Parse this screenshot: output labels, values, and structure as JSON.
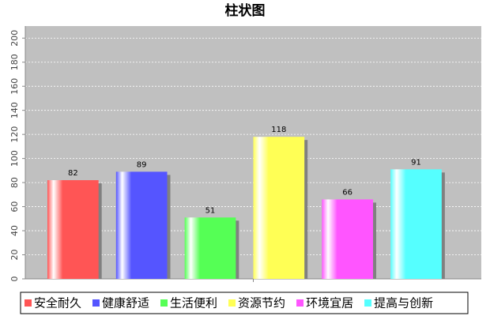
{
  "chart_data": {
    "type": "bar",
    "title": "柱状图",
    "categories": [
      null
    ],
    "series": [
      {
        "name": "安全耐久",
        "color": "#ff5555",
        "values": [
          82
        ]
      },
      {
        "name": "健康舒适",
        "color": "#5555ff",
        "values": [
          89
        ]
      },
      {
        "name": "生活便利",
        "color": "#55ff55",
        "values": [
          51
        ]
      },
      {
        "name": "资源节约",
        "color": "#ffff55",
        "values": [
          118
        ]
      },
      {
        "name": "环境宜居",
        "color": "#ff55ff",
        "values": [
          66
        ]
      },
      {
        "name": "提高与创新",
        "color": "#55ffff",
        "values": [
          91
        ]
      }
    ],
    "ylim": [
      0,
      210
    ],
    "yticks": [
      0,
      20,
      40,
      60,
      80,
      100,
      120,
      140,
      160,
      180,
      200
    ],
    "grid": true
  }
}
